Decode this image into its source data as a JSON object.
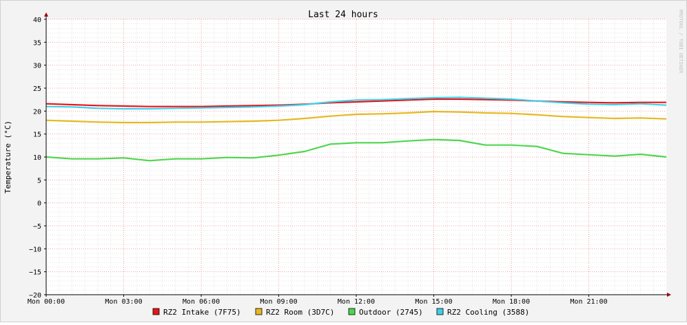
{
  "chart_data": {
    "type": "line",
    "title": "Last 24 hours",
    "ylabel": "Temperature (°C)",
    "watermark": "RRDTOOL / TOBI OETIKER",
    "ylim": [
      -20,
      40
    ],
    "y_ticks": [
      40,
      35,
      30,
      25,
      20,
      15,
      10,
      5,
      0,
      -5,
      -10,
      -15,
      -20
    ],
    "y_tick_labels": [
      "40",
      "35",
      "30",
      "25",
      "20",
      "15",
      "10",
      "5",
      "0",
      "−5",
      "−10",
      "−15",
      "−20"
    ],
    "x_ticks": [
      0,
      3,
      6,
      9,
      12,
      15,
      18,
      21
    ],
    "x_tick_labels": [
      "Mon 00:00",
      "Mon 03:00",
      "Mon 06:00",
      "Mon 09:00",
      "Mon 12:00",
      "Mon 15:00",
      "Mon 18:00",
      "Mon 21:00"
    ],
    "xlim": [
      0,
      24
    ],
    "x": [
      0,
      1,
      2,
      3,
      4,
      5,
      6,
      7,
      8,
      9,
      10,
      11,
      12,
      13,
      14,
      15,
      16,
      17,
      18,
      19,
      20,
      21,
      22,
      23,
      24
    ],
    "grid": true,
    "legend_placement": "bottom",
    "series": [
      {
        "name": "RZ2 Intake (7F75)",
        "color": "#e8141a",
        "values": [
          21.6,
          21.4,
          21.2,
          21.1,
          21.0,
          21.0,
          21.0,
          21.1,
          21.2,
          21.3,
          21.5,
          21.8,
          22.0,
          22.2,
          22.4,
          22.6,
          22.6,
          22.5,
          22.4,
          22.2,
          22.0,
          21.9,
          21.8,
          21.9,
          21.9
        ]
      },
      {
        "name": "RZ2 Room (3D7C)",
        "color": "#e6b820",
        "values": [
          18.0,
          17.8,
          17.6,
          17.5,
          17.5,
          17.6,
          17.6,
          17.7,
          17.8,
          18.0,
          18.4,
          18.9,
          19.3,
          19.4,
          19.6,
          19.9,
          19.8,
          19.6,
          19.5,
          19.2,
          18.8,
          18.6,
          18.4,
          18.5,
          18.3
        ]
      },
      {
        "name": "Outdoor (2745)",
        "color": "#4ed64e",
        "values": [
          10.0,
          9.6,
          9.6,
          9.8,
          9.2,
          9.6,
          9.6,
          9.9,
          9.8,
          10.4,
          11.2,
          12.8,
          13.1,
          13.1,
          13.5,
          13.8,
          13.6,
          12.6,
          12.6,
          12.3,
          10.8,
          10.5,
          10.2,
          10.6,
          10.0
        ]
      },
      {
        "name": "RZ2 Cooling (3588)",
        "color": "#3fd0e8",
        "values": [
          21.0,
          20.9,
          20.6,
          20.5,
          20.5,
          20.6,
          20.7,
          20.8,
          20.9,
          21.1,
          21.4,
          22.0,
          22.4,
          22.5,
          22.7,
          22.9,
          23.0,
          22.8,
          22.6,
          22.2,
          21.8,
          21.5,
          21.4,
          21.6,
          21.3
        ]
      }
    ]
  }
}
